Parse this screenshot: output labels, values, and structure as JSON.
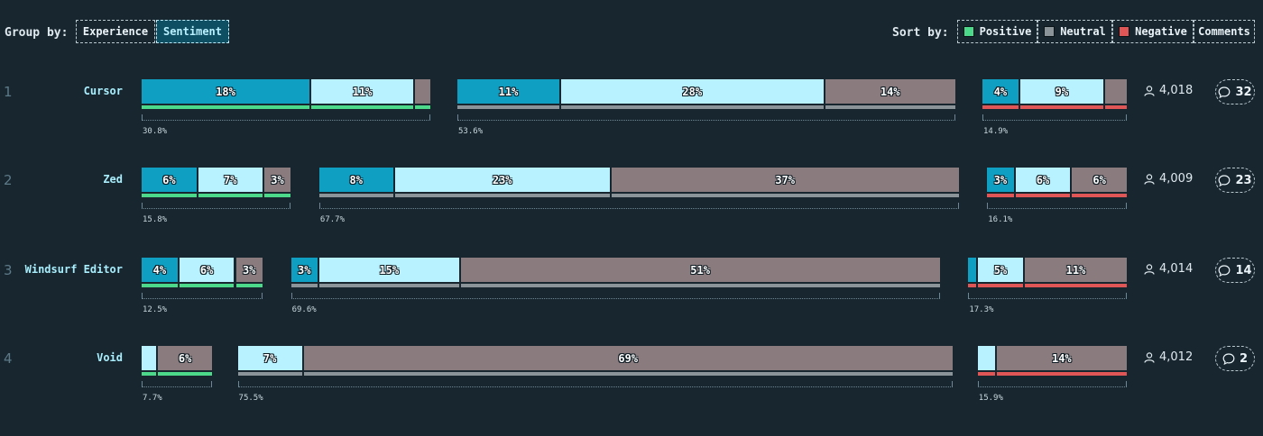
{
  "controls": {
    "group_by_label": "Group by:",
    "group_options": [
      "Experience",
      "Sentiment"
    ],
    "group_active": "Sentiment",
    "sort_by_label": "Sort by:",
    "sort_options": [
      {
        "label": "Positive",
        "swatch": "#4cd98a"
      },
      {
        "label": "Neutral",
        "swatch": "#8a9499"
      },
      {
        "label": "Negative",
        "swatch": "#e05555"
      },
      {
        "label": "Comments",
        "swatch": ""
      }
    ]
  },
  "colors": {
    "experience_high": "#0f9fc2",
    "experience_mid": "#b8f1ff",
    "experience_low": "#8a7b7e",
    "sentiment_positive": "#4cd98a",
    "sentiment_neutral": "#8a9499",
    "sentiment_negative": "#e05555"
  },
  "chart_data": {
    "type": "bar",
    "groups": [
      "Positive",
      "Neutral",
      "Negative"
    ],
    "segments": [
      "high",
      "mid",
      "low"
    ],
    "rows": [
      {
        "rank": "1",
        "name": "Cursor",
        "users": "4,018",
        "comments": "32",
        "groups": [
          {
            "sentiment": "positive",
            "total": "30.8%",
            "segments": [
              {
                "value": 18,
                "label": "18%"
              },
              {
                "value": 11,
                "label": "11%"
              },
              {
                "value": 1.8,
                "label": ""
              }
            ]
          },
          {
            "sentiment": "neutral",
            "total": "53.6%",
            "segments": [
              {
                "value": 11,
                "label": "11%"
              },
              {
                "value": 28,
                "label": "28%"
              },
              {
                "value": 14,
                "label": "14%"
              }
            ]
          },
          {
            "sentiment": "negative",
            "total": "14.9%",
            "segments": [
              {
                "value": 4,
                "label": "4%"
              },
              {
                "value": 9,
                "label": "9%"
              },
              {
                "value": 2.5,
                "label": ""
              }
            ]
          }
        ]
      },
      {
        "rank": "2",
        "name": "Zed",
        "users": "4,009",
        "comments": "23",
        "groups": [
          {
            "sentiment": "positive",
            "total": "15.8%",
            "segments": [
              {
                "value": 6,
                "label": "6%"
              },
              {
                "value": 7,
                "label": "7%"
              },
              {
                "value": 3,
                "label": "3%"
              }
            ]
          },
          {
            "sentiment": "neutral",
            "total": "67.7%",
            "segments": [
              {
                "value": 8,
                "label": "8%"
              },
              {
                "value": 23,
                "label": "23%"
              },
              {
                "value": 37,
                "label": "37%"
              }
            ]
          },
          {
            "sentiment": "negative",
            "total": "16.1%",
            "segments": [
              {
                "value": 3,
                "label": "3%"
              },
              {
                "value": 6,
                "label": "6%"
              },
              {
                "value": 6,
                "label": "6%"
              }
            ]
          }
        ]
      },
      {
        "rank": "3",
        "name": "Windsurf Editor",
        "users": "4,014",
        "comments": "14",
        "groups": [
          {
            "sentiment": "positive",
            "total": "12.5%",
            "segments": [
              {
                "value": 4,
                "label": "4%"
              },
              {
                "value": 6,
                "label": "6%"
              },
              {
                "value": 3,
                "label": "3%"
              }
            ]
          },
          {
            "sentiment": "neutral",
            "total": "69.6%",
            "segments": [
              {
                "value": 3,
                "label": "3%"
              },
              {
                "value": 15,
                "label": "15%"
              },
              {
                "value": 51,
                "label": "51%"
              }
            ]
          },
          {
            "sentiment": "negative",
            "total": "17.3%",
            "segments": [
              {
                "value": 1,
                "label": ""
              },
              {
                "value": 5,
                "label": "5%"
              },
              {
                "value": 11,
                "label": "11%"
              }
            ]
          }
        ]
      },
      {
        "rank": "4",
        "name": "Void",
        "users": "4,012",
        "comments": "2",
        "groups": [
          {
            "sentiment": "positive",
            "total": "7.7%",
            "segments": [
              {
                "value": 0,
                "label": ""
              },
              {
                "value": 1.7,
                "label": ""
              },
              {
                "value": 6,
                "label": "6%"
              }
            ]
          },
          {
            "sentiment": "neutral",
            "total": "75.5%",
            "segments": [
              {
                "value": 0,
                "label": ""
              },
              {
                "value": 7,
                "label": "7%"
              },
              {
                "value": 69,
                "label": "69%"
              }
            ]
          },
          {
            "sentiment": "negative",
            "total": "15.9%",
            "segments": [
              {
                "value": 0,
                "label": ""
              },
              {
                "value": 2,
                "label": ""
              },
              {
                "value": 14,
                "label": "14%"
              }
            ]
          }
        ]
      }
    ]
  }
}
